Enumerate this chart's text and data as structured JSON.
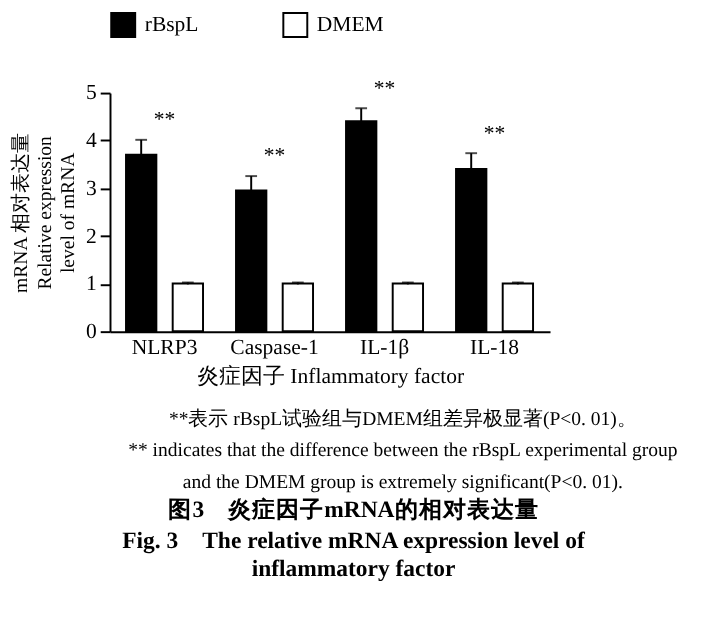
{
  "chart_data": {
    "type": "bar",
    "title": "图3　炎症因子mRNA的相对表达量",
    "subtitle": "Fig. 3　The relative mRNA expression level of inflammatory factor",
    "xlabel": "炎症因子 Inflammatory factor",
    "ylabel": "mRNA 相对表达量\nRelative expression\nlevel of mRNA",
    "categories": [
      "NLRP3",
      "Caspase-1",
      "IL-1β",
      "IL-18"
    ],
    "series": [
      {
        "name": "rBspL",
        "color": "#000000",
        "values": [
          3.7,
          2.95,
          4.4,
          3.4
        ],
        "errors": [
          0.31,
          0.3,
          0.27,
          0.33
        ]
      },
      {
        "name": "DMEM",
        "color": "#ffffff",
        "values": [
          1.0,
          1.0,
          1.0,
          1.0
        ],
        "errors": [
          0.02,
          0.02,
          0.02,
          0.02
        ]
      }
    ],
    "ylim": [
      0,
      5
    ],
    "yticks": [
      0,
      1,
      2,
      3,
      4,
      5
    ],
    "grid": false,
    "legend": "top",
    "annotations": [
      "**",
      "**",
      "**",
      "**",
      "**表示 rBspL试验组与DMEM组差异极显著(P<0. 01)。",
      "** indicates that the difference between the rBspL experimental group and the DMEM group is extremely significant(P<0. 01)."
    ]
  }
}
